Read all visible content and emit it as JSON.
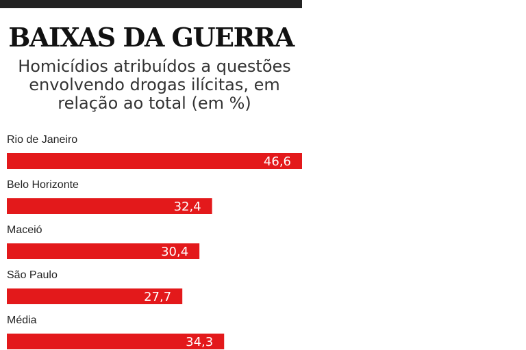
{
  "title": "BAIXAS DA GUERRA",
  "subtitle": "Homicídios atribuídos a questões envolvendo drogas ilícitas, em relação ao total (em %)",
  "chart_data": {
    "type": "bar",
    "orientation": "horizontal",
    "title": "BAIXAS DA GUERRA",
    "subtitle": "Homicídios atribuídos a questões envolvendo drogas ilícitas, em relação ao total (em %)",
    "categories": [
      "Rio de Janeiro",
      "Belo Horizonte",
      "Maceió",
      "São Paulo",
      "Média"
    ],
    "values": [
      46.6,
      32.4,
      30.4,
      27.7,
      34.3
    ],
    "value_labels": [
      "46,6",
      "32,4",
      "30,4",
      "27,7",
      "34,3"
    ],
    "xlim": [
      0,
      46.6
    ],
    "grid": false,
    "bar_color": "#e3191b"
  }
}
